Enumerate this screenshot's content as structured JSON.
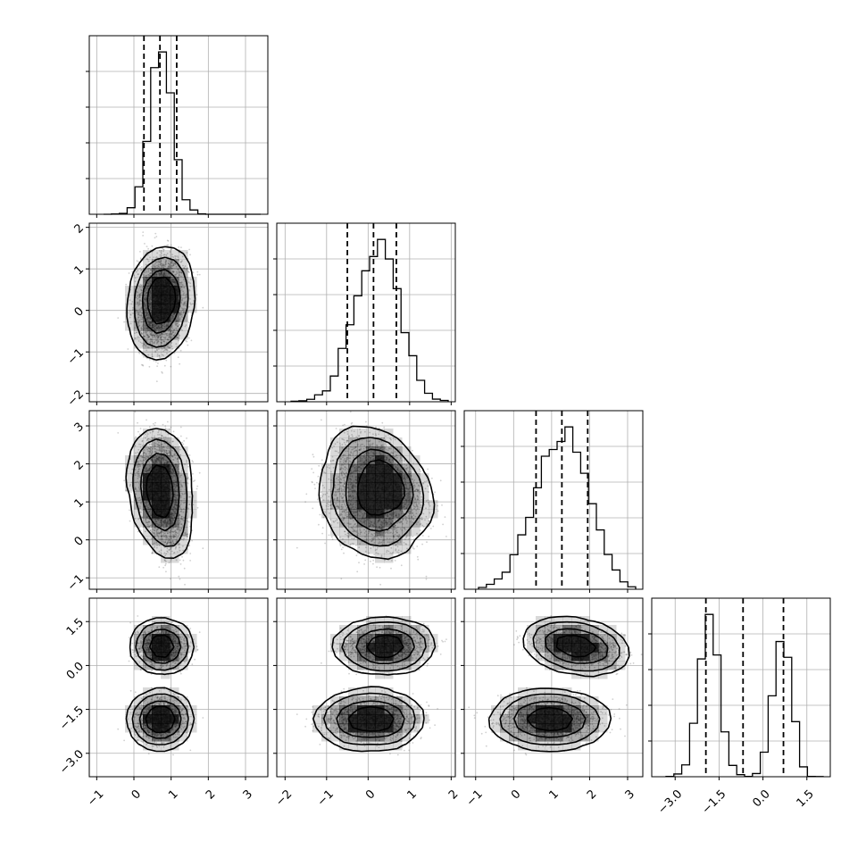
{
  "chart_data": {
    "type": "corner",
    "n_params": 4,
    "grid": true,
    "params": [
      {
        "range": [
          -1.2,
          3.6
        ],
        "ticks": [
          -1,
          0,
          1,
          2,
          3
        ],
        "tick_labels": [
          "−1",
          "0",
          "1",
          "2",
          "3"
        ]
      },
      {
        "range": [
          -2.2,
          2.1
        ],
        "ticks": [
          -2,
          -1,
          0,
          1,
          2
        ],
        "tick_labels": [
          "−2",
          "−1",
          "0",
          "1",
          "2"
        ]
      },
      {
        "range": [
          -1.3,
          3.4
        ],
        "ticks": [
          -1,
          0,
          1,
          2,
          3
        ],
        "tick_labels": [
          "−1",
          "0",
          "1",
          "2",
          "3"
        ]
      },
      {
        "range": [
          -3.8,
          2.3
        ],
        "ticks": [
          -3.0,
          -1.5,
          0.0,
          1.5
        ],
        "tick_labels": [
          "−3.0",
          "−1.5",
          "0.0",
          "1.5"
        ]
      }
    ],
    "quantiles": [
      [
        0.27,
        0.7,
        1.15
      ],
      [
        -0.5,
        0.13,
        0.68
      ],
      [
        0.59,
        1.27,
        1.95
      ],
      [
        -1.95,
        -0.68,
        0.7
      ]
    ],
    "components": [
      {
        "weight": 0.55,
        "mean": [
          0.72,
          0.05,
          0.95,
          -1.85
        ],
        "sd": [
          0.3,
          0.52,
          0.62,
          0.35
        ]
      },
      {
        "weight": 0.45,
        "mean": [
          0.74,
          0.4,
          1.65,
          0.65
        ],
        "sd": [
          0.3,
          0.48,
          0.55,
          0.32
        ]
      }
    ],
    "hist_bins": 20,
    "contour_levels": 4
  }
}
